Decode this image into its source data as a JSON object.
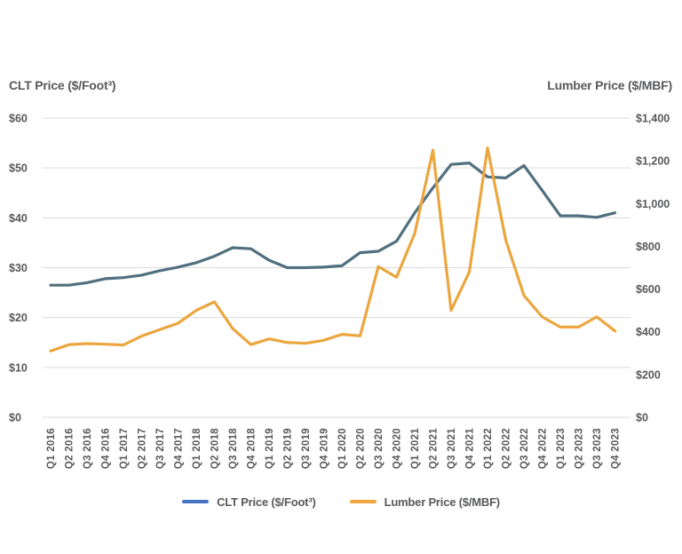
{
  "chart_data": {
    "type": "line",
    "title": "",
    "categories": [
      "Q1 2016",
      "Q2 2016",
      "Q3 2016",
      "Q4 2016",
      "Q1 2017",
      "Q2 2017",
      "Q3 2017",
      "Q4 2017",
      "Q1 2018",
      "Q2 2018",
      "Q3 2018",
      "Q4 2018",
      "Q1 2019",
      "Q2 2019",
      "Q3 2019",
      "Q4 2019",
      "Q1 2020",
      "Q2 2020",
      "Q3 2020",
      "Q4 2020",
      "Q1 2021",
      "Q2 2021",
      "Q3 2021",
      "Q4 2021",
      "Q1 2022",
      "Q2 2022",
      "Q3 2022",
      "Q4 2022",
      "Q1 2023",
      "Q2 2023",
      "Q3 2023",
      "Q4 2023"
    ],
    "series": [
      {
        "name": "CLT Price ($/Foot³)",
        "axis": "left",
        "color": "#51707F",
        "values": [
          26.5,
          26.5,
          27.0,
          27.8,
          28.0,
          28.5,
          29.4,
          30.1,
          31.0,
          32.3,
          34.0,
          33.8,
          31.5,
          30.0,
          30.0,
          30.1,
          30.4,
          33.0,
          33.3,
          35.3,
          41.0,
          46.0,
          50.7,
          51.0,
          48.2,
          48.0,
          50.5,
          45.5,
          40.4,
          40.4,
          40.1,
          41.0
        ]
      },
      {
        "name": "Lumber Price ($/MBF)",
        "axis": "right",
        "color": "#EBA63F",
        "values": [
          310,
          340,
          345,
          342,
          338,
          380,
          410,
          440,
          500,
          540,
          415,
          340,
          367,
          350,
          346,
          360,
          388,
          381,
          705,
          655,
          860,
          1250,
          500,
          680,
          1260,
          830,
          570,
          470,
          422,
          422,
          470,
          404
        ]
      }
    ],
    "left_axis": {
      "title": "CLT Price ($/Foot³)",
      "min": 0,
      "max": 60,
      "ticks": [
        {
          "value": 60,
          "label": "$60"
        },
        {
          "value": 50,
          "label": "$50"
        },
        {
          "value": 40,
          "label": "$40"
        },
        {
          "value": 30,
          "label": "$30"
        },
        {
          "value": 20,
          "label": "$20"
        },
        {
          "value": 10,
          "label": "$10"
        },
        {
          "value": 0,
          "label": "$0"
        }
      ]
    },
    "right_axis": {
      "title": "Lumber Price ($/MBF)",
      "min": 0,
      "max": 1400,
      "ticks": [
        {
          "value": 1400,
          "label": "$1,400"
        },
        {
          "value": 1200,
          "label": "$1,200"
        },
        {
          "value": 1000,
          "label": "$1,000"
        },
        {
          "value": 800,
          "label": "$800"
        },
        {
          "value": 600,
          "label": "$600"
        },
        {
          "value": 400,
          "label": "$400"
        },
        {
          "value": 200,
          "label": "$200"
        },
        {
          "value": 0,
          "label": "$0"
        }
      ]
    },
    "grid": "horizontal",
    "grid_color": "#DBDBDB",
    "legend": {
      "position": "bottom",
      "entries": [
        {
          "label": "CLT Price ($/Foot³)",
          "swatch_color": "#4472C4"
        },
        {
          "label": "Lumber Price ($/MBF)",
          "swatch_color": "#F0A63C"
        }
      ]
    }
  }
}
